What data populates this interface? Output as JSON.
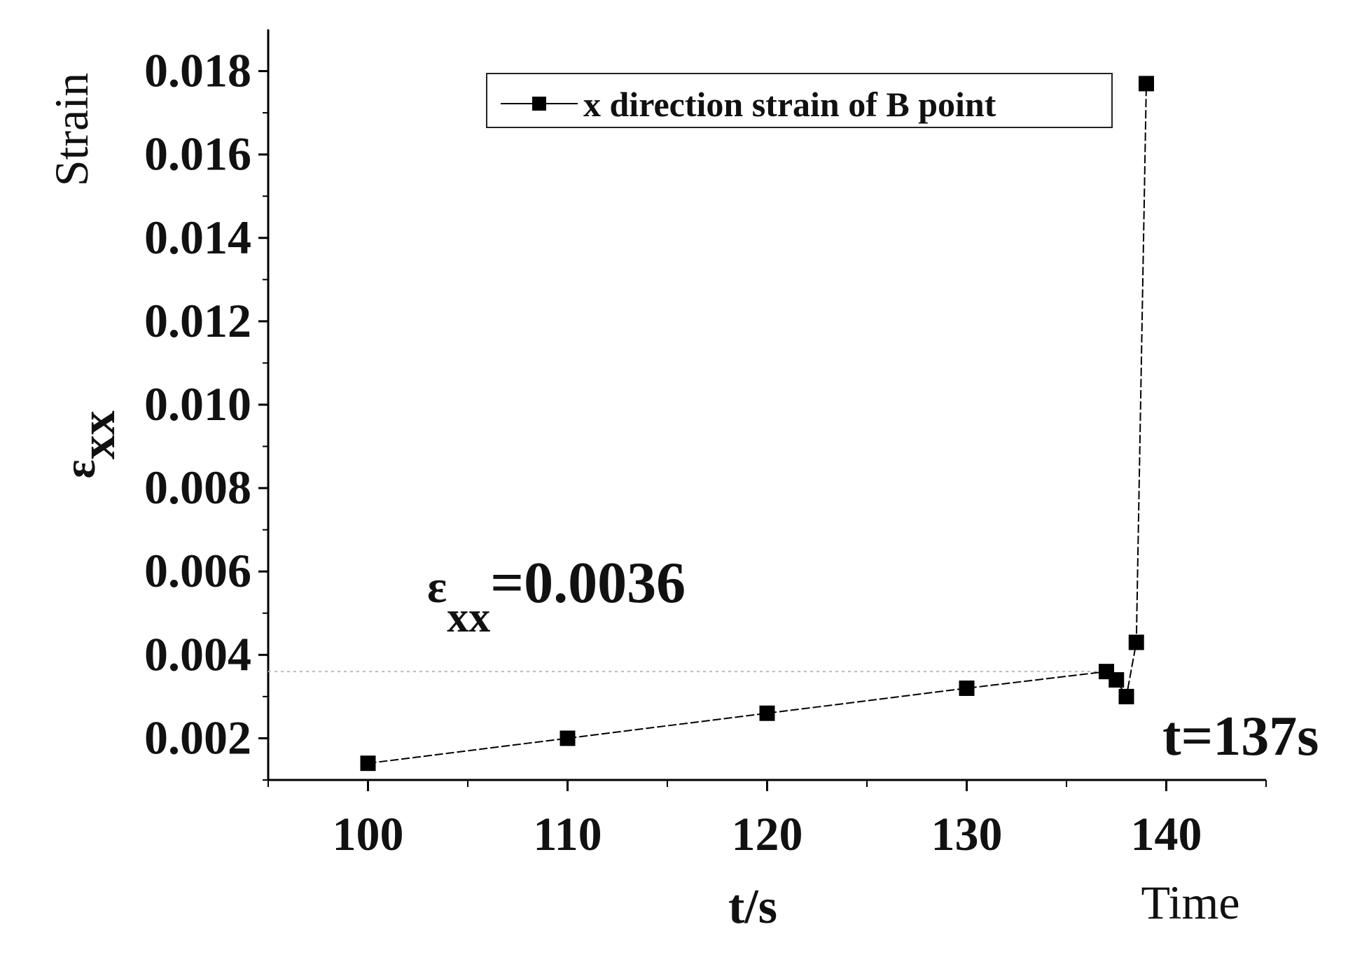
{
  "chart_data": {
    "type": "line",
    "xlabel": "t/s",
    "xlabel_extra": "Time",
    "ylabel_symbol": "ε",
    "ylabel_subscript": "xx",
    "ylabel_extra": "Strain",
    "xlim": [
      95,
      145
    ],
    "ylim": [
      0.001,
      0.019
    ],
    "x_ticks": [
      100,
      110,
      120,
      130,
      140
    ],
    "x_tick_labels": [
      "100",
      "110",
      "120",
      "130",
      "140"
    ],
    "y_ticks": [
      0.002,
      0.004,
      0.006,
      0.008,
      0.01,
      0.012,
      0.014,
      0.016,
      0.018
    ],
    "y_tick_labels": [
      "0.002",
      "0.004",
      "0.006",
      "0.008",
      "0.010",
      "0.012",
      "0.014",
      "0.016",
      "0.018"
    ],
    "grid": false,
    "legend_position": "top-right",
    "series": [
      {
        "name": "x direction strain of B point",
        "color": "#000000",
        "marker": "square",
        "x": [
          100,
          110,
          120,
          130,
          137,
          137.5,
          138,
          138.5,
          139
        ],
        "y": [
          0.0014,
          0.002,
          0.0026,
          0.0032,
          0.0036,
          0.0034,
          0.003,
          0.0043,
          0.0177
        ]
      }
    ],
    "annotations": {
      "threshold_symbol": "ε",
      "threshold_subscript": "xx",
      "threshold_text": "=0.0036",
      "threshold_value": 0.0036,
      "time_text": "t=137s"
    }
  }
}
